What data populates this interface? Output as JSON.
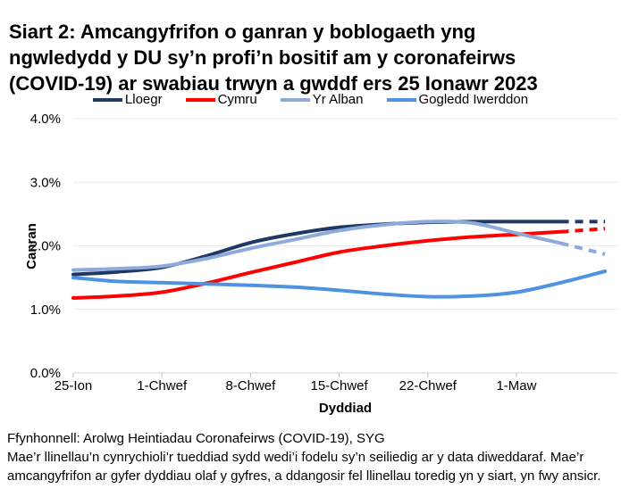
{
  "header": {
    "title_lines": [
      "Siart 2: Amcangyfrifon o ganran y boblogaeth yng",
      "ngwledydd y DU sy’n profi’n bositif am y coronafeirws",
      "(COVID-19) ar swabiau trwyn a gwddf ers 25 Ionawr 2023"
    ]
  },
  "chart_data": {
    "type": "line",
    "title": "Siart 2: Amcangyfrifon o ganran y boblogaeth yng ngwledydd y DU sy’n profi’n bositif am y coronafeirws (COVID-19) ar swabiau trwyn a gwddf ers 25 Ionawr 2023",
    "xlabel": "Dyddiad",
    "ylabel": "Canran",
    "ylim": [
      0.0,
      4.0
    ],
    "x_range_days": [
      0,
      42
    ],
    "grid": "horizontal",
    "legend_position": "top",
    "y_ticks": [
      {
        "value": 0.0,
        "label": "0.0%"
      },
      {
        "value": 1.0,
        "label": "1.0%"
      },
      {
        "value": 2.0,
        "label": "2.0%"
      },
      {
        "value": 3.0,
        "label": "3.0%"
      },
      {
        "value": 4.0,
        "label": "4.0%"
      }
    ],
    "x_ticks": [
      {
        "day": 0,
        "label": "25-Ion"
      },
      {
        "day": 7,
        "label": "1-Chwef"
      },
      {
        "day": 14,
        "label": "8-Chwef"
      },
      {
        "day": 21,
        "label": "15-Chwef"
      },
      {
        "day": 28,
        "label": "22-Chwef"
      },
      {
        "day": 35,
        "label": "1-Maw"
      }
    ],
    "days": [
      0,
      3.5,
      7,
      10.5,
      14,
      17.5,
      21,
      24.5,
      28,
      31.5,
      35,
      38.5,
      42
    ],
    "series": [
      {
        "name": "Lloegr",
        "color": "#1f3864",
        "dashed_from_day": 38.5,
        "values": [
          1.55,
          1.59,
          1.66,
          1.84,
          2.05,
          2.19,
          2.29,
          2.34,
          2.37,
          2.38,
          2.38,
          2.38,
          2.38
        ]
      },
      {
        "name": "Cymru",
        "color": "#fe0000",
        "dashed_from_day": 38.5,
        "values": [
          1.18,
          1.21,
          1.27,
          1.41,
          1.58,
          1.74,
          1.9,
          2.0,
          2.08,
          2.14,
          2.18,
          2.22,
          2.27
        ]
      },
      {
        "name": "Yr Alban",
        "color": "#8eaadb",
        "dashed_from_day": 38.5,
        "values": [
          1.62,
          1.64,
          1.68,
          1.8,
          1.96,
          2.1,
          2.24,
          2.33,
          2.38,
          2.36,
          2.2,
          2.04,
          1.87
        ]
      },
      {
        "name": "Gogledd Iwerddon",
        "color": "#4f93e0",
        "dashed_from_day": null,
        "values": [
          1.5,
          1.44,
          1.42,
          1.4,
          1.38,
          1.35,
          1.3,
          1.24,
          1.2,
          1.21,
          1.27,
          1.42,
          1.6
        ]
      }
    ]
  },
  "footer": {
    "source": "Ffynhonnell: Arolwg Heintiadau Coronafeirws (COVID-19), SYG",
    "note": "Mae’r llinellau’n cynrychioli’r tueddiad sydd wedi’i fodelu sy’n seiliedig ar y data diweddaraf. Mae’r amcangyfrifon ar gyfer dyddiau olaf y gyfres, a ddangosir fel llinellau toredig yn y siart, yn fwy ansicr."
  },
  "colors": {
    "grid": "#eaeaea",
    "axis": "#d6d6d6",
    "tick": "#bfbfbf",
    "text": "#000000"
  }
}
